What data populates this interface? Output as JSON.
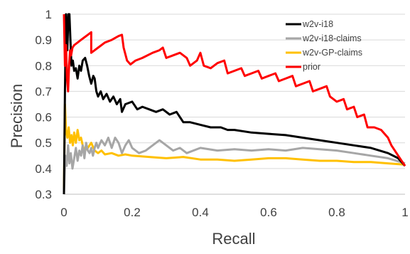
{
  "chart_data": {
    "type": "line",
    "title": "",
    "xlabel": "Recall",
    "ylabel": "Precision",
    "xlim": [
      0,
      1
    ],
    "ylim": [
      0.3,
      1
    ],
    "x_ticks": [
      0,
      0.2,
      0.4,
      0.6,
      0.8,
      1
    ],
    "y_ticks": [
      0.3,
      0.4,
      0.5,
      0.6,
      0.7,
      0.8,
      0.9,
      1
    ],
    "x_tick_labels": [
      "0",
      "0.2",
      "0.4",
      "0.6",
      "0.8",
      "1"
    ],
    "y_tick_labels": [
      "0.3",
      "0.4",
      "0.5",
      "0.6",
      "0.7",
      "0.8",
      "0.9",
      "1"
    ],
    "grid": "horizontal",
    "legend_position": "top-right",
    "series": [
      {
        "name": "w2v-i18",
        "color": "#000000",
        "points": [
          [
            0.0,
            0.3
          ],
          [
            0.003,
            0.7
          ],
          [
            0.006,
            1.0
          ],
          [
            0.01,
            0.86
          ],
          [
            0.013,
            1.0
          ],
          [
            0.016,
            1.0
          ],
          [
            0.019,
            0.9
          ],
          [
            0.022,
            0.8
          ],
          [
            0.026,
            0.82
          ],
          [
            0.03,
            0.78
          ],
          [
            0.035,
            0.79
          ],
          [
            0.04,
            0.75
          ],
          [
            0.045,
            0.8
          ],
          [
            0.05,
            0.78
          ],
          [
            0.055,
            0.82
          ],
          [
            0.062,
            0.83
          ],
          [
            0.068,
            0.8
          ],
          [
            0.074,
            0.76
          ],
          [
            0.08,
            0.73
          ],
          [
            0.086,
            0.76
          ],
          [
            0.09,
            0.75
          ],
          [
            0.095,
            0.7
          ],
          [
            0.1,
            0.68
          ],
          [
            0.108,
            0.7
          ],
          [
            0.115,
            0.67
          ],
          [
            0.125,
            0.69
          ],
          [
            0.135,
            0.66
          ],
          [
            0.145,
            0.68
          ],
          [
            0.155,
            0.65
          ],
          [
            0.165,
            0.67
          ],
          [
            0.17,
            0.62
          ],
          [
            0.18,
            0.65
          ],
          [
            0.2,
            0.66
          ],
          [
            0.215,
            0.63
          ],
          [
            0.23,
            0.64
          ],
          [
            0.25,
            0.63
          ],
          [
            0.27,
            0.62
          ],
          [
            0.29,
            0.63
          ],
          [
            0.31,
            0.61
          ],
          [
            0.33,
            0.62
          ],
          [
            0.35,
            0.58
          ],
          [
            0.37,
            0.58
          ],
          [
            0.4,
            0.57
          ],
          [
            0.43,
            0.56
          ],
          [
            0.46,
            0.56
          ],
          [
            0.48,
            0.55
          ],
          [
            0.5,
            0.55
          ],
          [
            0.55,
            0.54
          ],
          [
            0.6,
            0.535
          ],
          [
            0.65,
            0.53
          ],
          [
            0.7,
            0.52
          ],
          [
            0.75,
            0.51
          ],
          [
            0.8,
            0.5
          ],
          [
            0.85,
            0.49
          ],
          [
            0.9,
            0.48
          ],
          [
            0.95,
            0.46
          ],
          [
            0.98,
            0.44
          ],
          [
            1.0,
            0.41
          ]
        ]
      },
      {
        "name": "w2v-i18-claims",
        "color": "#a6a6a6",
        "points": [
          [
            0.0,
            0.3
          ],
          [
            0.004,
            0.45
          ],
          [
            0.008,
            0.41
          ],
          [
            0.012,
            0.49
          ],
          [
            0.016,
            0.42
          ],
          [
            0.02,
            0.46
          ],
          [
            0.025,
            0.4
          ],
          [
            0.03,
            0.44
          ],
          [
            0.035,
            0.48
          ],
          [
            0.04,
            0.43
          ],
          [
            0.045,
            0.47
          ],
          [
            0.05,
            0.45
          ],
          [
            0.055,
            0.49
          ],
          [
            0.06,
            0.44
          ],
          [
            0.065,
            0.5
          ],
          [
            0.07,
            0.47
          ],
          [
            0.075,
            0.46
          ],
          [
            0.08,
            0.48
          ],
          [
            0.085,
            0.45
          ],
          [
            0.09,
            0.48
          ],
          [
            0.095,
            0.5
          ],
          [
            0.1,
            0.48
          ],
          [
            0.11,
            0.51
          ],
          [
            0.12,
            0.49
          ],
          [
            0.13,
            0.52
          ],
          [
            0.14,
            0.48
          ],
          [
            0.15,
            0.52
          ],
          [
            0.16,
            0.5
          ],
          [
            0.17,
            0.46
          ],
          [
            0.18,
            0.49
          ],
          [
            0.19,
            0.51
          ],
          [
            0.2,
            0.48
          ],
          [
            0.22,
            0.46
          ],
          [
            0.24,
            0.47
          ],
          [
            0.26,
            0.49
          ],
          [
            0.28,
            0.51
          ],
          [
            0.3,
            0.49
          ],
          [
            0.32,
            0.47
          ],
          [
            0.34,
            0.48
          ],
          [
            0.36,
            0.46
          ],
          [
            0.4,
            0.48
          ],
          [
            0.45,
            0.47
          ],
          [
            0.5,
            0.475
          ],
          [
            0.55,
            0.47
          ],
          [
            0.6,
            0.475
          ],
          [
            0.65,
            0.47
          ],
          [
            0.7,
            0.48
          ],
          [
            0.75,
            0.475
          ],
          [
            0.8,
            0.47
          ],
          [
            0.85,
            0.46
          ],
          [
            0.9,
            0.45
          ],
          [
            0.95,
            0.44
          ],
          [
            1.0,
            0.42
          ]
        ]
      },
      {
        "name": "w2v-GP-claims",
        "color": "#ffc000",
        "points": [
          [
            0.0,
            0.32
          ],
          [
            0.003,
            0.65
          ],
          [
            0.006,
            0.55
          ],
          [
            0.01,
            0.52
          ],
          [
            0.014,
            0.56
          ],
          [
            0.018,
            0.5
          ],
          [
            0.022,
            0.53
          ],
          [
            0.026,
            0.49
          ],
          [
            0.03,
            0.54
          ],
          [
            0.035,
            0.5
          ],
          [
            0.04,
            0.55
          ],
          [
            0.045,
            0.51
          ],
          [
            0.05,
            0.52
          ],
          [
            0.055,
            0.49
          ],
          [
            0.06,
            0.47
          ],
          [
            0.07,
            0.48
          ],
          [
            0.08,
            0.5
          ],
          [
            0.09,
            0.47
          ],
          [
            0.1,
            0.46
          ],
          [
            0.11,
            0.47
          ],
          [
            0.12,
            0.455
          ],
          [
            0.14,
            0.46
          ],
          [
            0.16,
            0.45
          ],
          [
            0.18,
            0.455
          ],
          [
            0.2,
            0.45
          ],
          [
            0.25,
            0.445
          ],
          [
            0.3,
            0.44
          ],
          [
            0.35,
            0.445
          ],
          [
            0.4,
            0.435
          ],
          [
            0.45,
            0.435
          ],
          [
            0.5,
            0.43
          ],
          [
            0.55,
            0.435
          ],
          [
            0.6,
            0.44
          ],
          [
            0.65,
            0.44
          ],
          [
            0.7,
            0.435
          ],
          [
            0.75,
            0.43
          ],
          [
            0.8,
            0.43
          ],
          [
            0.85,
            0.425
          ],
          [
            0.9,
            0.425
          ],
          [
            0.95,
            0.42
          ],
          [
            1.0,
            0.415
          ]
        ]
      },
      {
        "name": "prior",
        "color": "#ff0000",
        "points": [
          [
            0.0,
            1.0
          ],
          [
            0.003,
            0.8
          ],
          [
            0.006,
            0.88
          ],
          [
            0.009,
            0.75
          ],
          [
            0.012,
            0.7
          ],
          [
            0.015,
            0.8
          ],
          [
            0.018,
            0.86
          ],
          [
            0.021,
            0.84
          ],
          [
            0.025,
            0.87
          ],
          [
            0.03,
            0.88
          ],
          [
            0.04,
            0.89
          ],
          [
            0.05,
            0.9
          ],
          [
            0.06,
            0.91
          ],
          [
            0.07,
            0.92
          ],
          [
            0.08,
            0.93
          ],
          [
            0.08,
            0.85
          ],
          [
            0.1,
            0.87
          ],
          [
            0.12,
            0.89
          ],
          [
            0.14,
            0.9
          ],
          [
            0.16,
            0.915
          ],
          [
            0.17,
            0.92
          ],
          [
            0.175,
            0.87
          ],
          [
            0.185,
            0.82
          ],
          [
            0.195,
            0.805
          ],
          [
            0.21,
            0.82
          ],
          [
            0.23,
            0.83
          ],
          [
            0.26,
            0.85
          ],
          [
            0.28,
            0.86
          ],
          [
            0.29,
            0.87
          ],
          [
            0.3,
            0.83
          ],
          [
            0.32,
            0.84
          ],
          [
            0.34,
            0.85
          ],
          [
            0.36,
            0.83
          ],
          [
            0.37,
            0.8
          ],
          [
            0.39,
            0.82
          ],
          [
            0.4,
            0.85
          ],
          [
            0.41,
            0.8
          ],
          [
            0.43,
            0.79
          ],
          [
            0.45,
            0.81
          ],
          [
            0.47,
            0.82
          ],
          [
            0.48,
            0.77
          ],
          [
            0.5,
            0.78
          ],
          [
            0.52,
            0.79
          ],
          [
            0.53,
            0.76
          ],
          [
            0.55,
            0.77
          ],
          [
            0.57,
            0.78
          ],
          [
            0.58,
            0.75
          ],
          [
            0.6,
            0.76
          ],
          [
            0.62,
            0.77
          ],
          [
            0.63,
            0.74
          ],
          [
            0.65,
            0.75
          ],
          [
            0.67,
            0.76
          ],
          [
            0.68,
            0.72
          ],
          [
            0.7,
            0.73
          ],
          [
            0.72,
            0.74
          ],
          [
            0.73,
            0.7
          ],
          [
            0.75,
            0.71
          ],
          [
            0.77,
            0.72
          ],
          [
            0.78,
            0.68
          ],
          [
            0.8,
            0.66
          ],
          [
            0.82,
            0.67
          ],
          [
            0.83,
            0.63
          ],
          [
            0.85,
            0.64
          ],
          [
            0.86,
            0.6
          ],
          [
            0.88,
            0.61
          ],
          [
            0.89,
            0.56
          ],
          [
            0.91,
            0.56
          ],
          [
            0.93,
            0.55
          ],
          [
            0.95,
            0.52
          ],
          [
            0.96,
            0.49
          ],
          [
            0.98,
            0.45
          ],
          [
            1.0,
            0.41
          ]
        ]
      }
    ]
  }
}
